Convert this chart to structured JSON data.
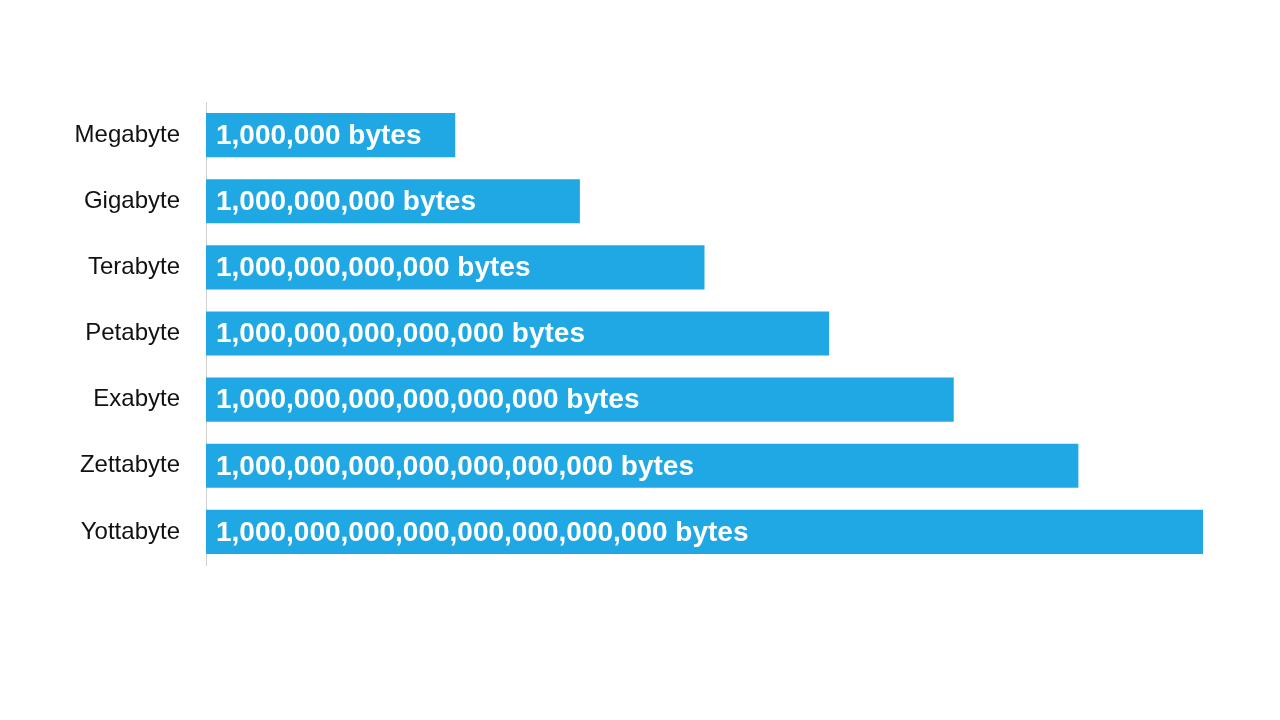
{
  "chart_data": {
    "type": "bar",
    "orientation": "horizontal",
    "log": "x",
    "tick_labels": "y",
    "categories": [
      "Megabyte",
      "Gigabyte",
      "Terabyte",
      "Petabyte",
      "Exabyte",
      "Zettabyte",
      "Yottabyte"
    ],
    "values": [
      1000000,
      1000000000,
      1000000000000,
      1000000000000000,
      1000000000000000000,
      1000000000000000000000,
      1000000000000000000000000
    ],
    "xlim": [
      1,
      1000000000000000000000000
    ],
    "color": "#20a8e4",
    "value_labels": [
      "1,000,000 bytes",
      "1,000,000,000 bytes",
      "1,000,000,000,000 bytes",
      "1,000,000,000,000,000 bytes",
      "1,000,000,000,000,000,000 bytes",
      "1,000,000,000,000,000,000,000 bytes",
      "1,000,000,000,000,000,000,000,000 bytes"
    ]
  }
}
